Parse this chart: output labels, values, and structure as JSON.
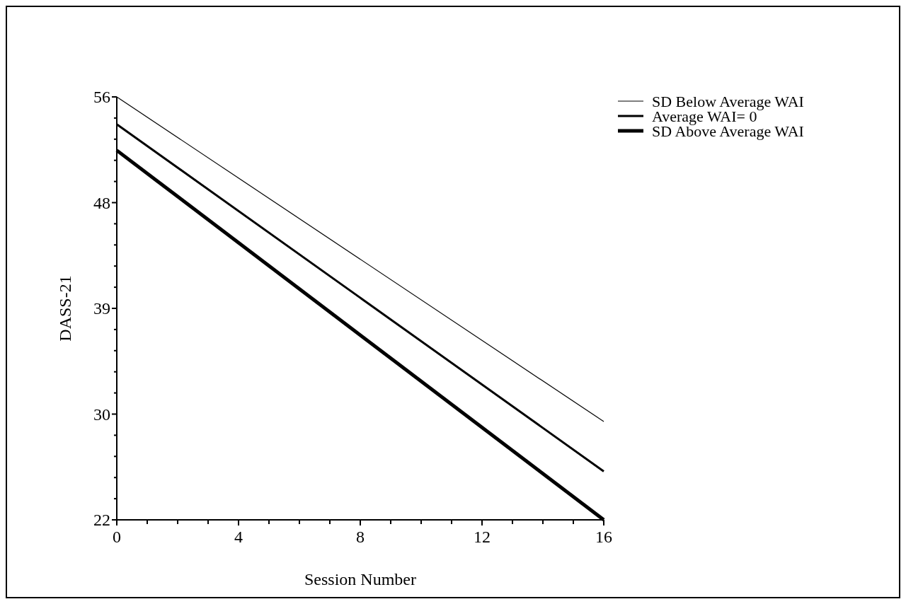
{
  "chart_data": {
    "type": "line",
    "xlabel": "Session Number",
    "ylabel": "DASS-21",
    "x": [
      0,
      16
    ],
    "series": [
      {
        "name": "SD Below Average WAI",
        "color": "#000000",
        "values": [
          56.0,
          29.9
        ]
      },
      {
        "name": "Average WAI= 0",
        "color": "#000000",
        "values": [
          53.8,
          25.9
        ]
      },
      {
        "name": "SD Above Average WAI",
        "color": "#000000",
        "values": [
          51.7,
          22.0
        ]
      }
    ],
    "xlim": [
      0,
      16
    ],
    "xticks": [
      0,
      {
        "value": 1,
        "label": null
      },
      {
        "value": 2,
        "label": null
      },
      {
        "value": 3,
        "label": null
      },
      4,
      {
        "value": 5,
        "label": null
      },
      {
        "value": 6,
        "label": null
      },
      {
        "value": 7,
        "label": null
      },
      8,
      {
        "value": 9,
        "label": null
      },
      {
        "value": 10,
        "label": null
      },
      {
        "value": 11,
        "label": null
      },
      12,
      {
        "value": 13,
        "label": null
      },
      {
        "value": 14,
        "label": null
      },
      {
        "value": 15,
        "label": null
      },
      16
    ],
    "ylim": [
      22,
      56
    ],
    "yticks": [
      22,
      {
        "value": 23.7,
        "label": null
      },
      {
        "value": 25.4,
        "label": null
      },
      {
        "value": 27.1,
        "label": null
      },
      {
        "value": 28.8,
        "label": null
      },
      {
        "value": 30.5,
        "label": "30"
      },
      {
        "value": 32.2,
        "label": null
      },
      {
        "value": 33.9,
        "label": null
      },
      {
        "value": 35.6,
        "label": null
      },
      {
        "value": 37.3,
        "label": null
      },
      39,
      {
        "value": 40.7,
        "label": null
      },
      {
        "value": 42.4,
        "label": null
      },
      {
        "value": 44.1,
        "label": null
      },
      {
        "value": 45.8,
        "label": null
      },
      {
        "value": 47.5,
        "label": "48"
      },
      {
        "value": 49.2,
        "label": null
      },
      {
        "value": 50.9,
        "label": null
      },
      {
        "value": 52.6,
        "label": null
      },
      {
        "value": 54.3,
        "label": null
      },
      56
    ],
    "legend": "right",
    "grid": false,
    "marker": "none",
    "line_style": "solid"
  }
}
